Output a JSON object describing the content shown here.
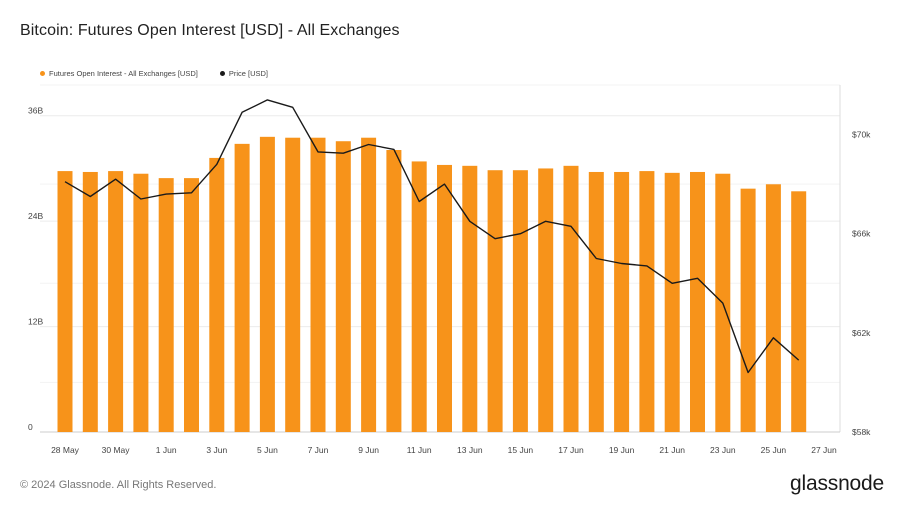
{
  "header": {
    "title": "Bitcoin: Futures Open Interest [USD] - All Exchanges"
  },
  "legend": [
    {
      "label": "Futures Open Interest - All Exchanges [USD]",
      "color": "#f7931a"
    },
    {
      "label": "Price [USD]",
      "color": "#1a1a1a"
    }
  ],
  "footer": {
    "copyright": "© 2024 Glassnode. All Rights Reserved.",
    "brand": "glassnode"
  },
  "chart_data": {
    "type": "bar",
    "title": "Bitcoin: Futures Open Interest [USD] - All Exchanges",
    "categories": [
      "28 May",
      "29 May",
      "30 May",
      "31 May",
      "1 Jun",
      "2 Jun",
      "3 Jun",
      "4 Jun",
      "5 Jun",
      "6 Jun",
      "7 Jun",
      "8 Jun",
      "9 Jun",
      "10 Jun",
      "11 Jun",
      "12 Jun",
      "13 Jun",
      "14 Jun",
      "15 Jun",
      "16 Jun",
      "17 Jun",
      "18 Jun",
      "19 Jun",
      "20 Jun",
      "21 Jun",
      "22 Jun",
      "23 Jun",
      "24 Jun",
      "25 Jun",
      "26 Jun"
    ],
    "x_tick_labels": [
      "28 May",
      "30 May",
      "1 Jun",
      "3 Jun",
      "5 Jun",
      "7 Jun",
      "9 Jun",
      "11 Jun",
      "13 Jun",
      "15 Jun",
      "17 Jun",
      "19 Jun",
      "21 Jun",
      "23 Jun",
      "25 Jun",
      "27 Jun"
    ],
    "left_axis": {
      "ticks": [
        "0",
        "12B",
        "24B",
        "36B"
      ],
      "ylim": [
        0,
        39.5
      ]
    },
    "right_axis": {
      "ticks": [
        "$58k",
        "$62k",
        "$66k",
        "$70k"
      ],
      "ylim": [
        58000,
        72000
      ]
    },
    "series": [
      {
        "name": "Futures Open Interest - All Exchanges [USD]",
        "type": "bar",
        "axis": "left",
        "color": "#f7931a",
        "values": [
          29.7,
          29.6,
          29.7,
          29.4,
          28.9,
          28.9,
          31.2,
          32.8,
          33.6,
          33.5,
          33.5,
          33.1,
          33.5,
          32.1,
          30.8,
          30.4,
          30.3,
          29.8,
          29.8,
          30.0,
          30.3,
          29.6,
          29.6,
          29.7,
          29.5,
          29.6,
          29.4,
          27.7,
          28.2,
          27.4
        ]
      },
      {
        "name": "Price [USD]",
        "type": "line",
        "axis": "right",
        "color": "#1a1a1a",
        "values": [
          68100,
          67500,
          68200,
          67400,
          67600,
          67650,
          68800,
          70900,
          71400,
          71100,
          69300,
          69250,
          69600,
          69400,
          67300,
          68000,
          66500,
          65800,
          66000,
          66500,
          66300,
          65000,
          64800,
          64700,
          64000,
          64200,
          63200,
          60400,
          61800,
          60900
        ]
      }
    ],
    "grid": true,
    "legend_position": "top-left"
  }
}
